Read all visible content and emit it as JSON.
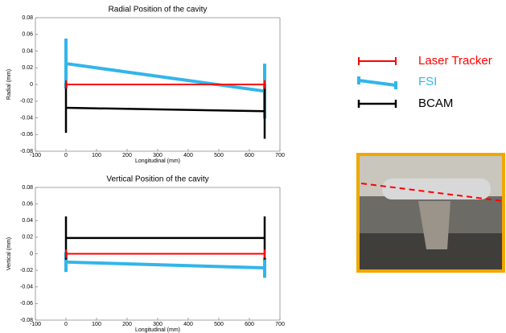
{
  "chart_data": [
    {
      "type": "line",
      "title": "Radial Position of the cavity",
      "xlabel": "Longitudinal (mm)",
      "ylabel": "Radial (mm)",
      "x": [
        0,
        650
      ],
      "xlim": [
        -100,
        700
      ],
      "xticks": [
        -100,
        0,
        100,
        200,
        300,
        400,
        500,
        600,
        700
      ],
      "ylim": [
        -0.08,
        0.08
      ],
      "yticks": [
        -0.08,
        -0.06,
        -0.04,
        -0.02,
        0,
        0.02,
        0.04,
        0.06,
        0.08
      ],
      "series": [
        {
          "name": "Laser Tracker",
          "color": "#ff0000",
          "values": [
            0,
            0
          ],
          "errors": [
            0.005,
            0.005
          ]
        },
        {
          "name": "FSI",
          "color": "#33b5ea",
          "values": [
            0.025,
            -0.008
          ],
          "errors": [
            0.03,
            0.033
          ]
        },
        {
          "name": "BCAM",
          "color": "#000000",
          "values": [
            -0.028,
            -0.032
          ],
          "errors": [
            0.03,
            0.033
          ]
        }
      ]
    },
    {
      "type": "line",
      "title": "Vertical Position of the cavity",
      "xlabel": "Longitudinal (mm)",
      "ylabel": "Vertical (mm)",
      "x": [
        0,
        650
      ],
      "xlim": [
        -100,
        700
      ],
      "xticks": [
        -100,
        0,
        100,
        200,
        300,
        400,
        500,
        600,
        700
      ],
      "ylim": [
        -0.08,
        0.08
      ],
      "yticks": [
        -0.08,
        -0.06,
        -0.04,
        -0.02,
        0,
        0.02,
        0.04,
        0.06,
        0.08
      ],
      "series": [
        {
          "color": "#ff0000",
          "values": [
            0,
            0
          ],
          "errors": [
            0.005,
            0.005
          ]
        },
        {
          "color": "#33b5ea",
          "values": [
            -0.01,
            -0.017
          ],
          "errors": [
            0.012,
            0.012
          ]
        },
        {
          "color": "#000000",
          "values": [
            0.019,
            0.019
          ],
          "errors": [
            0.026,
            0.026
          ]
        }
      ]
    }
  ]
}
